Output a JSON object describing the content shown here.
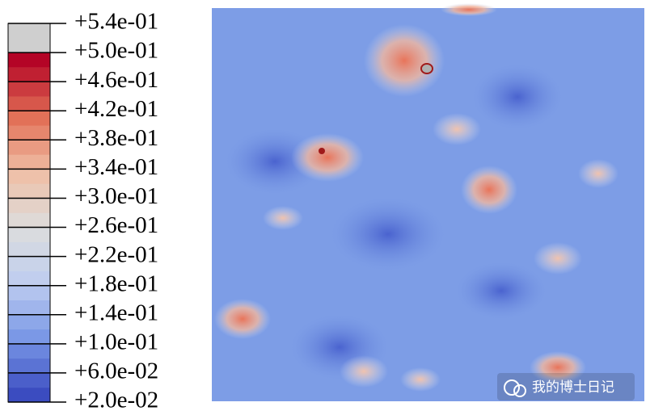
{
  "legend": {
    "labels": [
      "+5.4e-01",
      "+5.0e-01",
      "+4.6e-01",
      "+4.2e-01",
      "+3.8e-01",
      "+3.4e-01",
      "+3.0e-01",
      "+2.6e-01",
      "+2.2e-01",
      "+1.8e-01",
      "+1.4e-01",
      "+1.0e-01",
      "+6.0e-02",
      "+2.0e-02"
    ]
  },
  "watermark": "我的博士日记"
}
